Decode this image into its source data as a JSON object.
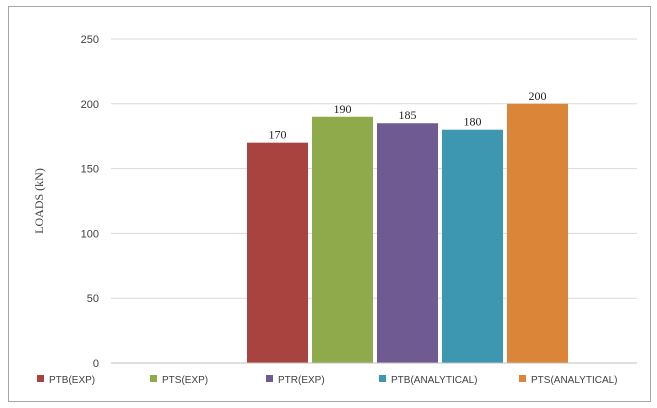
{
  "chart_data": {
    "type": "bar",
    "title": "",
    "xlabel": "",
    "ylabel": "LOADS (kN)",
    "ylim": [
      0,
      250
    ],
    "yticks": [
      0,
      50,
      100,
      150,
      200,
      250
    ],
    "grid": true,
    "legend_position": "bottom",
    "series": [
      {
        "name": "PTB(EXP)",
        "value": 170,
        "color": "#A9433F"
      },
      {
        "name": "PTS(EXP)",
        "value": 190,
        "color": "#8EAA4A"
      },
      {
        "name": "PTR(EXP)",
        "value": 185,
        "color": "#705A92"
      },
      {
        "name": "PTB(ANALYTICAL)",
        "value": 180,
        "color": "#3E97B0"
      },
      {
        "name": "PTS(ANALYTICAL)",
        "value": 200,
        "color": "#DB8539"
      }
    ]
  }
}
